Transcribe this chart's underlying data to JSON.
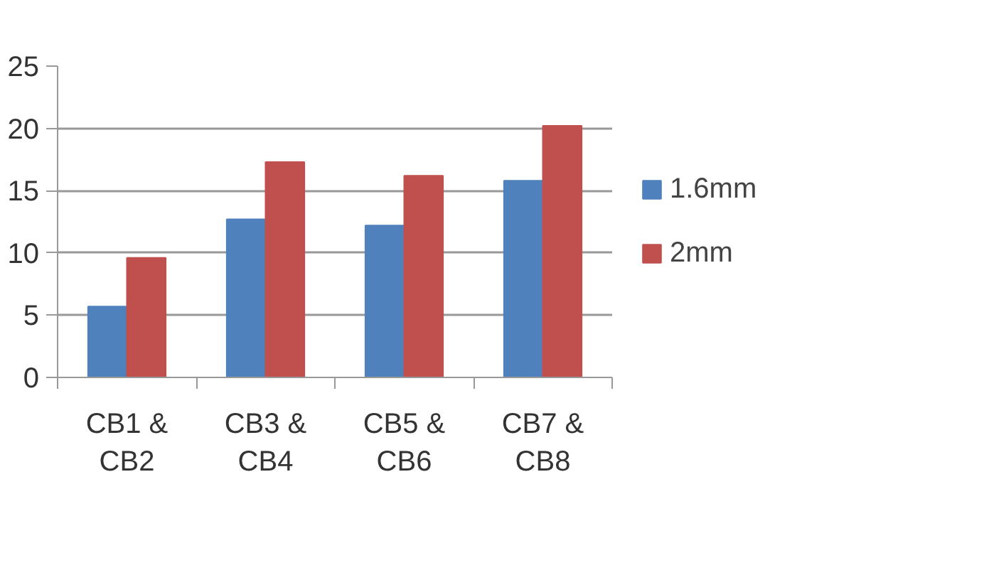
{
  "chart_data": {
    "type": "bar",
    "categories": [
      "CB1 &\nCB2",
      "CB3 &\nCB4",
      "CB5 &\nCB6",
      "CB7 &\nCB8"
    ],
    "series": [
      {
        "name": "1.6mm",
        "color": "#4f81bd",
        "values": [
          5.7,
          12.7,
          12.2,
          15.8
        ]
      },
      {
        "name": "2mm",
        "color": "#c0504d",
        "values": [
          9.6,
          17.3,
          16.2,
          20.2
        ]
      }
    ],
    "ylim": [
      0,
      25
    ],
    "yticks": [
      0,
      5,
      10,
      15,
      20,
      25
    ],
    "grid": "y",
    "legend": "right"
  }
}
